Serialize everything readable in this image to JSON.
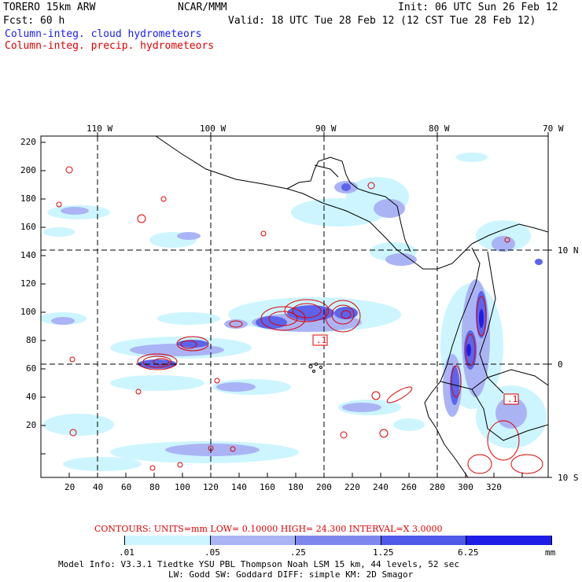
{
  "header": {
    "model": "TORERO  15km ARW",
    "center": "NCAR/MMM",
    "init": "Init: 06 UTC Sun 26 Feb 12",
    "fcst_label": "Fcst:   60 h",
    "valid": "Valid: 18 UTC Tue 28 Feb 12 (12 CST Tue 28 Feb 12)",
    "field_cloud": "Column-integ. cloud hydrometeors",
    "field_precip": "Column-integ. precip. hydrometeors"
  },
  "map": {
    "top_lon_labels": [
      "110 W",
      "100 W",
      "90 W",
      "80 W",
      "70 W"
    ],
    "right_lat_labels": [
      "10 N",
      "0",
      "10 S"
    ],
    "y_ticks": [
      "220",
      "200",
      "180",
      "160",
      "140",
      "120",
      "100",
      "80",
      "60",
      "40",
      "20"
    ],
    "x_ticks": [
      "20",
      "40",
      "60",
      "80",
      "100",
      "120",
      "140",
      "160",
      "180",
      "200",
      "220",
      "240",
      "260",
      "280",
      "300",
      "320"
    ],
    "boxes": [
      ".1",
      ".1"
    ]
  },
  "footer": {
    "contours": "CONTOURS:  UNITS=mm  LOW= 0.10000     HIGH=  24.300     INTERVAL=X  3.0000",
    "colorbar_labels": [
      ".01",
      ".05",
      ".25",
      "1.25",
      "6.25"
    ],
    "colorbar_unit": "mm",
    "colorbar_colors": [
      "#ffffff",
      "#ccf5ff",
      "#aab4f5",
      "#7d87ee",
      "#4f5ae8",
      "#1e1ee6"
    ],
    "model_info_1": "Model Info: V3.3.1   Tiedtke YSU PBL  Thompson    Noah LSM  15 km,   44 levels,   52 sec",
    "model_info_2": "LW: Godd SW: Goddard DIFF: simple KM: 2D Smagor"
  },
  "colors": {
    "cloud_text": "#1a1aff",
    "precip_text": "#e00000"
  }
}
